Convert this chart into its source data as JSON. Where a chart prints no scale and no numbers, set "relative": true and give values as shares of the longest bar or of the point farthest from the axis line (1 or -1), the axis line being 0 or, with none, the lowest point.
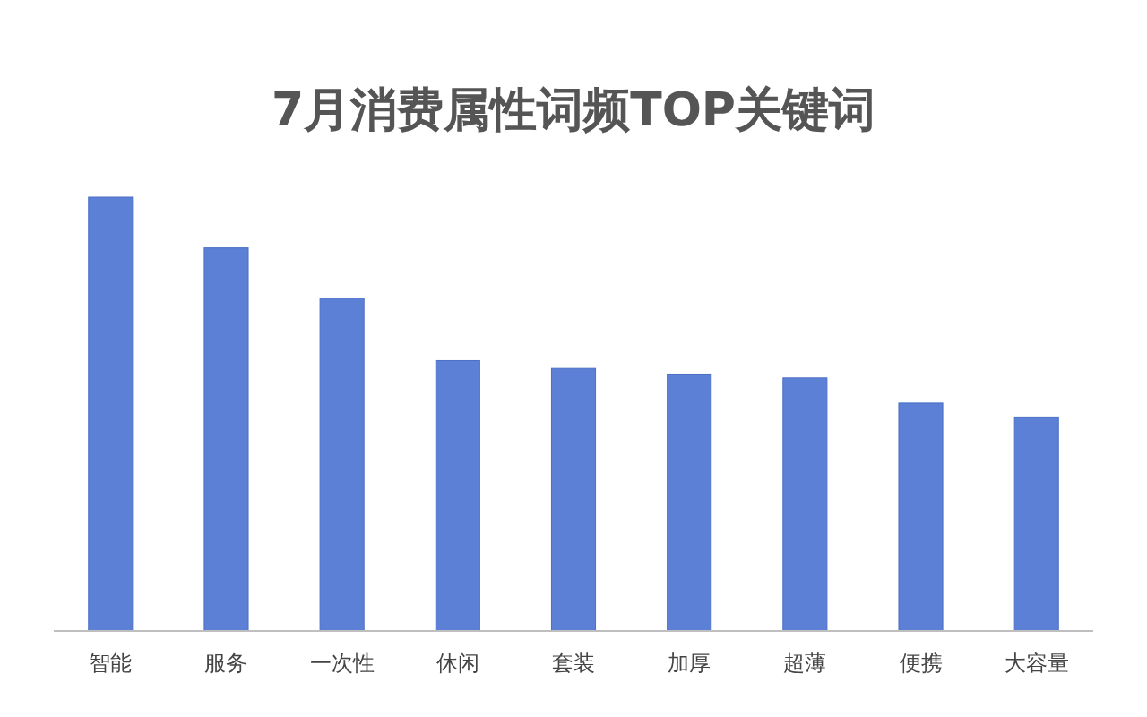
{
  "chart_data": {
    "type": "bar",
    "title": "7月消费属性词频TOP关键词",
    "relative": true,
    "categories": [
      "智能",
      "服务",
      "一次性",
      "休闲",
      "套装",
      "加厚",
      "超薄",
      "便携",
      "大容量"
    ],
    "values": [
      1,
      0.883,
      0.767,
      0.623,
      0.605,
      0.592,
      0.583,
      0.525,
      0.493
    ],
    "color": "#5b80d6"
  }
}
